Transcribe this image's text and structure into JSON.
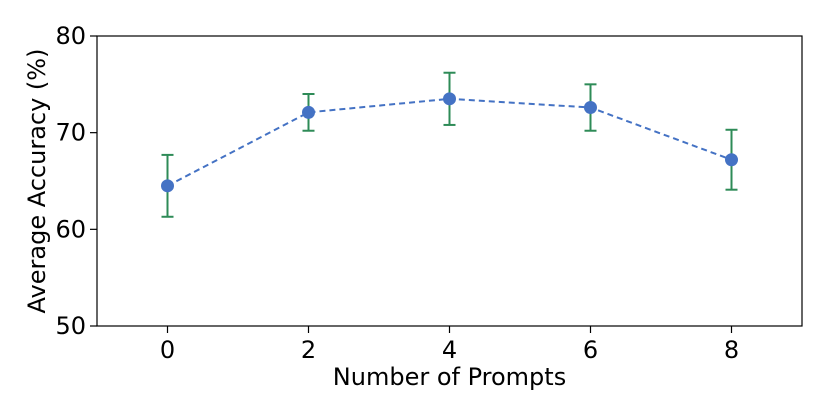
{
  "chart_data": {
    "type": "line",
    "xlabel": "Number of Prompts",
    "ylabel": "Average Accuracy (%)",
    "xlim": [
      -1,
      9
    ],
    "ylim": [
      50,
      80
    ],
    "xticks": [
      0,
      2,
      4,
      6,
      8
    ],
    "yticks": [
      50,
      60,
      70,
      80
    ],
    "grid": false,
    "series": [
      {
        "x": [
          0,
          2,
          4,
          6,
          8
        ],
        "y": [
          64.5,
          72.1,
          73.5,
          72.6,
          67.2
        ],
        "yerr_low": [
          61.3,
          70.2,
          70.8,
          70.2,
          64.1
        ],
        "yerr_high": [
          67.7,
          74.0,
          76.2,
          75.0,
          70.3
        ],
        "line_style": "dashed",
        "line_color": "#4472c4",
        "marker_color": "#4472c4",
        "errorbar_color": "#2e8b57"
      }
    ]
  }
}
